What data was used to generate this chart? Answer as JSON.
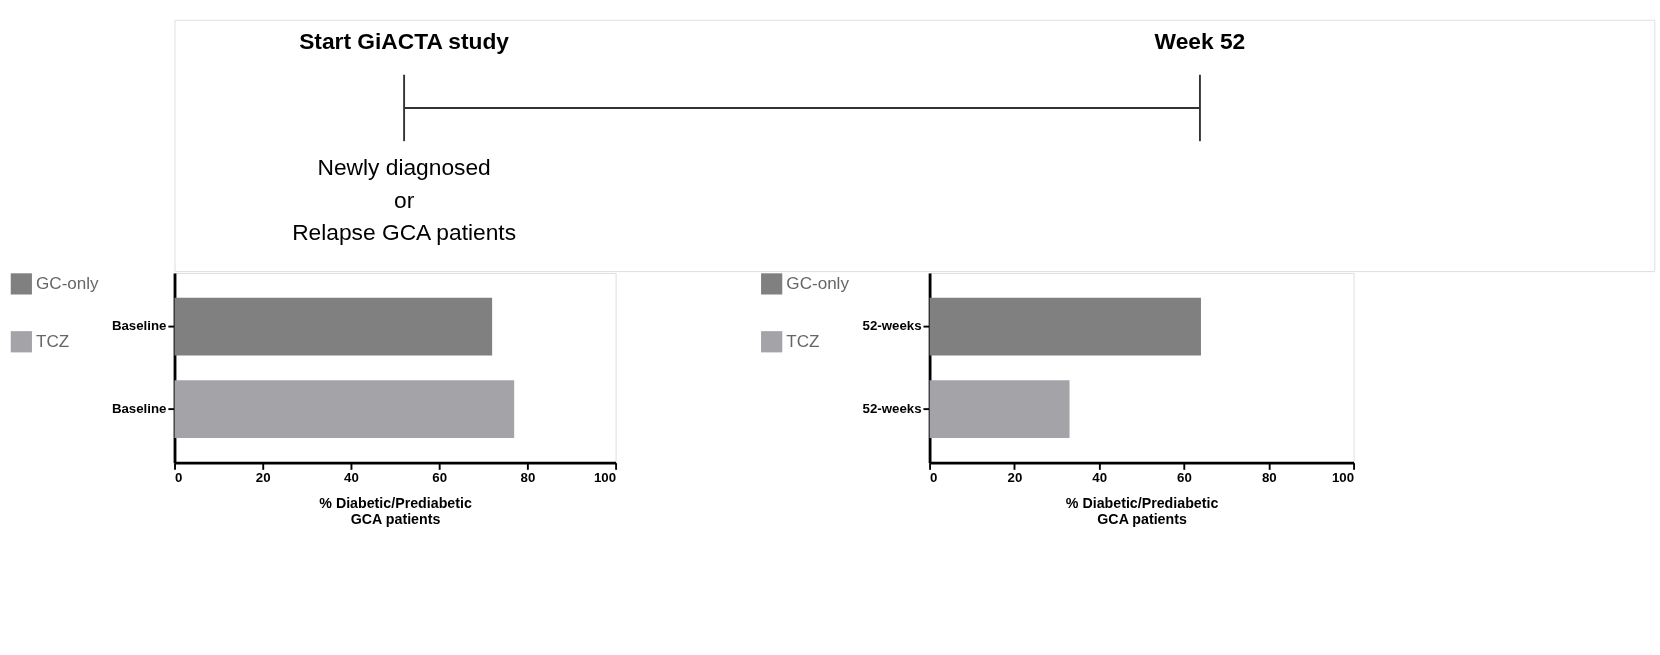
{
  "chart_data": [
    {
      "type": "bar",
      "orientation": "horizontal",
      "categories": [
        "Baseline",
        "Baseline"
      ],
      "series": [
        {
          "name": "GC-only",
          "color": "#808080",
          "values": [
            72,
            null
          ]
        },
        {
          "name": "TCZ",
          "color": "#a3a3a8",
          "values": [
            null,
            77
          ]
        }
      ],
      "xlabel": "% Diabetic/Prediabetic\nGCA patients",
      "xlim": [
        0,
        100
      ],
      "xticks": [
        0,
        20,
        40,
        60,
        80,
        100
      ],
      "grid": false,
      "legend": "left",
      "annotations": [
        "Start GiACTA study",
        "Newly diagnosed\nor\nRelapse GCA patients"
      ]
    },
    {
      "type": "bar",
      "orientation": "horizontal",
      "categories": [
        "52-weeks",
        "52-weeks"
      ],
      "series": [
        {
          "name": "GC-only",
          "color": "#808080",
          "values": [
            64,
            null
          ]
        },
        {
          "name": "TCZ",
          "color": "#a3a3a8",
          "values": [
            null,
            33
          ]
        }
      ],
      "xlabel": "% Diabetic/Prediabetic\nGCA patients",
      "xlim": [
        0,
        100
      ],
      "xticks": [
        0,
        20,
        40,
        60,
        80,
        100
      ],
      "grid": false,
      "legend": "left",
      "annotations": [
        "Week 52"
      ]
    }
  ]
}
